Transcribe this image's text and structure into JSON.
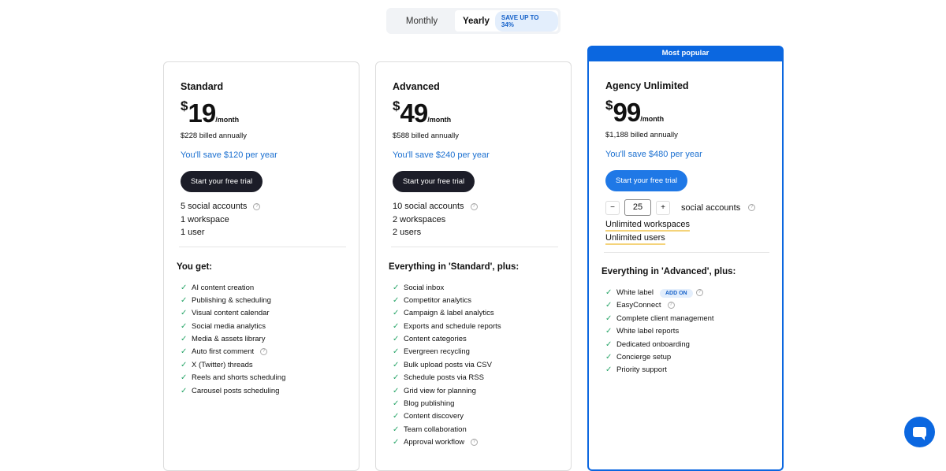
{
  "toggle": {
    "monthly": "Monthly",
    "yearly": "Yearly",
    "badge": "SAVE UP TO 34%"
  },
  "plans": [
    {
      "title": "Standard",
      "currency": "$",
      "amount": "19",
      "per": "/month",
      "billed": "$228 billed annually",
      "save": "You'll save $120 per year",
      "cta": "Start your free trial",
      "features": [
        "5 social accounts",
        "1 workspace",
        "1 user"
      ],
      "section": "You get:",
      "items": [
        "AI content creation",
        "Publishing & scheduling",
        "Visual content calendar",
        "Social media analytics",
        "Media & assets library",
        "Auto first comment",
        "X (Twitter) threads",
        "Reels and shorts scheduling",
        "Carousel posts scheduling"
      ]
    },
    {
      "title": "Advanced",
      "currency": "$",
      "amount": "49",
      "per": "/month",
      "billed": "$588 billed annually",
      "save": "You'll save $240 per year",
      "cta": "Start your free trial",
      "features": [
        "10 social accounts",
        "2 workspaces",
        "2 users"
      ],
      "section": "Everything in 'Standard', plus:",
      "items": [
        "Social inbox",
        "Competitor analytics",
        "Campaign & label analytics",
        "Exports and schedule reports",
        "Content categories",
        "Evergreen recycling",
        "Bulk upload posts via CSV",
        "Schedule posts via RSS",
        "Grid view for planning",
        "Blog publishing",
        "Content discovery",
        "Team collaboration",
        "Approval workflow"
      ]
    },
    {
      "badge": "Most popular",
      "title": "Agency Unlimited",
      "currency": "$",
      "amount": "99",
      "per": "/month",
      "billed": "$1,188 billed annually",
      "save": "You'll save $480 per year",
      "cta": "Start your free trial",
      "stepper": {
        "minus": "−",
        "value": "25",
        "plus": "+",
        "label": "social accounts"
      },
      "features": [
        "Unlimited workspaces",
        "Unlimited users"
      ],
      "section": "Everything in 'Advanced', plus:",
      "addon": "ADD ON",
      "items": [
        "White label",
        "EasyConnect",
        "Complete client management",
        "White label reports",
        "Dedicated onboarding",
        "Concierge setup",
        "Priority support"
      ]
    }
  ],
  "colors": {
    "accent": "#0b67e0",
    "check": "#2aa66a",
    "dark_button": "#1c1d28"
  }
}
